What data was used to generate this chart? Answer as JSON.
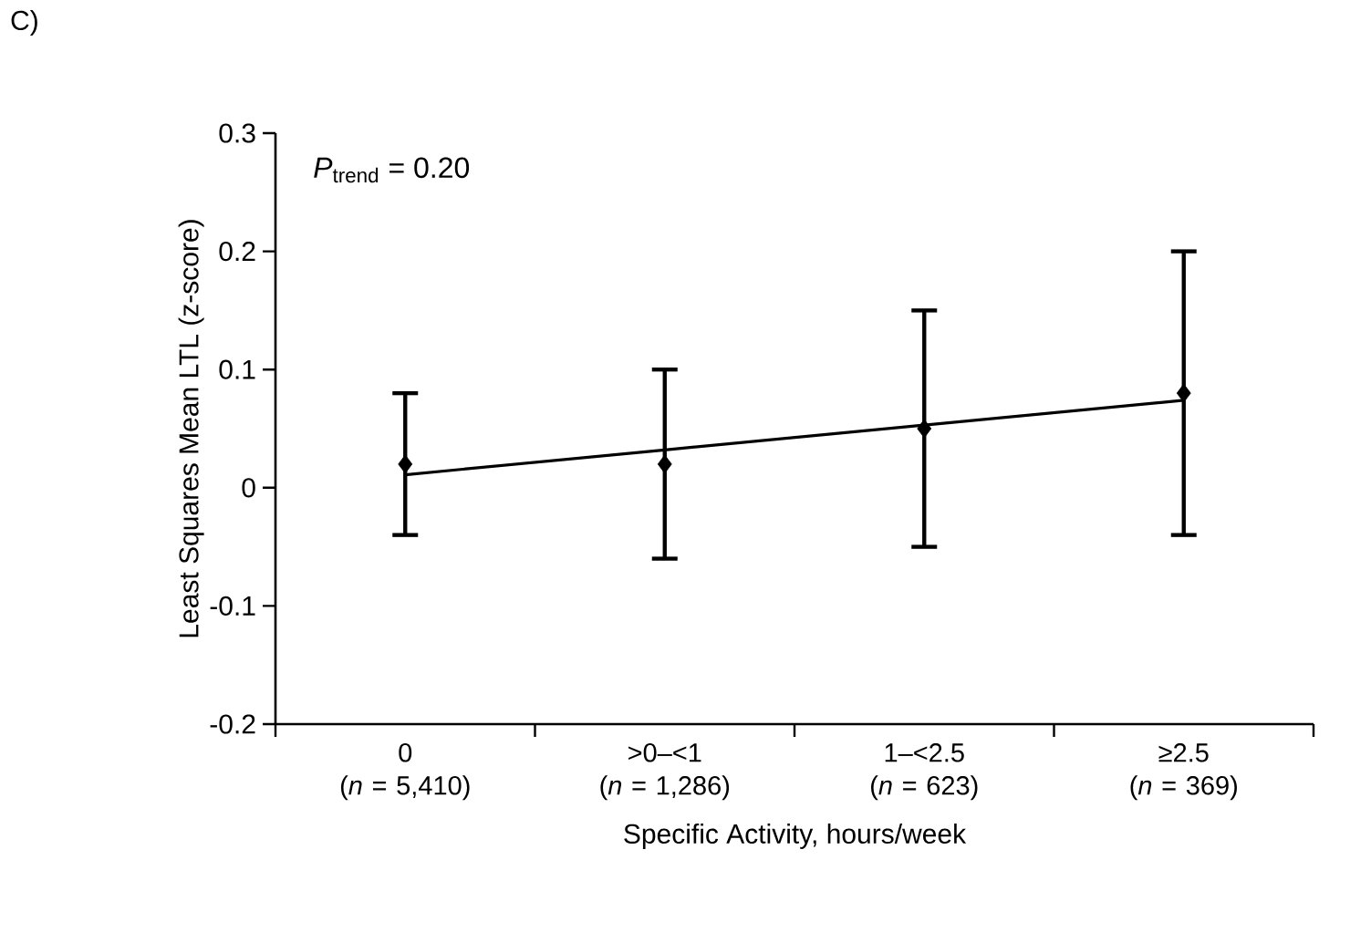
{
  "chart_data": {
    "type": "scatter",
    "title": "C)",
    "xlabel": "Specific Activity, hours/week",
    "ylabel": "Least Squares Mean LTL (z-score)",
    "categories": [
      "0 (*n* = 5,410)",
      ">0–<1 (*n* = 1,286)",
      "1–<2.5 (*n* = 623)",
      "≥2.5 (*n* = 369)"
    ],
    "series": [
      {
        "color": "#000000",
        "marker": "diamond",
        "values": [
          0.02,
          0.02,
          0.05,
          0.08
        ],
        "errors": [
          [
            -0.04,
            0.08
          ],
          [
            -0.06,
            0.1
          ],
          [
            -0.05,
            0.15
          ],
          [
            -0.04,
            0.2
          ]
        ]
      },
      {
        "type": "line",
        "color": "#000000",
        "marker": "none",
        "line_style": "solid",
        "values": [
          0.011,
          0.032,
          0.053,
          0.074
        ]
      }
    ],
    "ylim": [
      -0.2,
      0.3
    ],
    "yticks": [
      -0.2,
      -0.1,
      0,
      0.1,
      0.2,
      0.3
    ],
    "annotations": [
      "*P*$_{trend}$ = 0.20"
    ],
    "grid": false
  }
}
